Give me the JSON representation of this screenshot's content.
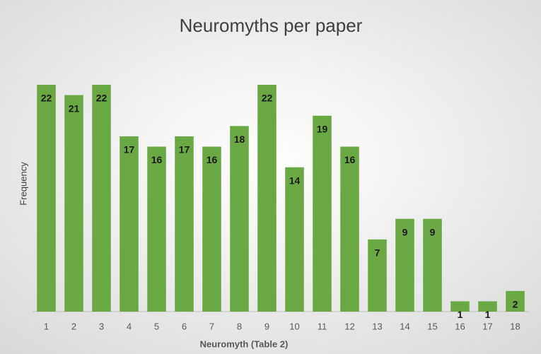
{
  "chart_data": {
    "type": "bar",
    "title": "Neuromyths per paper",
    "x_label": "Neuromyth (Table 2)",
    "y_label": "Frequency",
    "categories": [
      "1",
      "2",
      "3",
      "4",
      "5",
      "6",
      "7",
      "8",
      "9",
      "10",
      "11",
      "12",
      "13",
      "14",
      "15",
      "16",
      "17",
      "18"
    ],
    "values": [
      22,
      21,
      22,
      17,
      16,
      17,
      16,
      18,
      22,
      14,
      19,
      16,
      7,
      9,
      9,
      1,
      1,
      2
    ],
    "color": "#6aa843"
  }
}
